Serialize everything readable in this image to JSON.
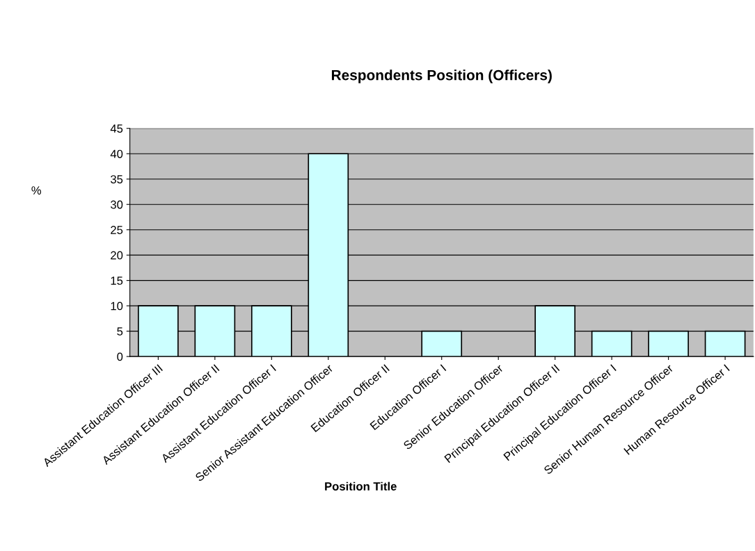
{
  "chart_data": {
    "type": "bar",
    "title": "Respondents Position (Officers)",
    "xlabel": "Position Title",
    "ylabel": "%",
    "categories": [
      "Assistant Education Officer III",
      "Assistant Education Officer II",
      "Assistant Education Officer I",
      "Senior Assistant Education Officer",
      "Education Officer II",
      "Education Officer I",
      "Senior Education Officer",
      "Principal Education Officer II",
      "Principal Education Officer I",
      "Senior Human Resource Officer",
      "Human Resource Officer I"
    ],
    "values": [
      10,
      10,
      10,
      40,
      0,
      5,
      0,
      10,
      5,
      5,
      5
    ],
    "color": "#ccffff",
    "ylim": [
      0,
      45
    ],
    "yticks": [
      0,
      5,
      10,
      15,
      20,
      25,
      30,
      35,
      40,
      45
    ],
    "grid": "y"
  }
}
